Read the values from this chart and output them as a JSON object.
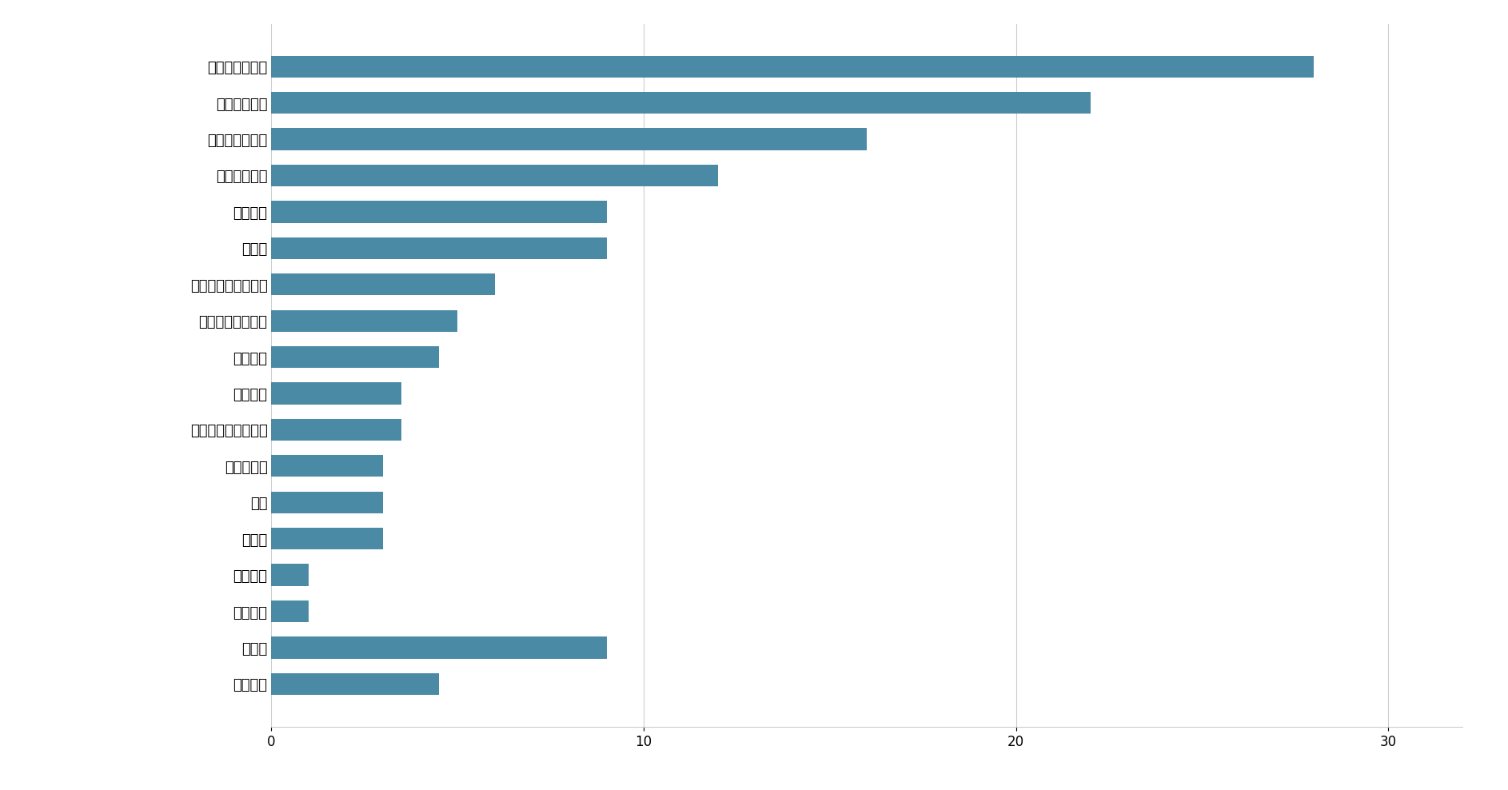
{
  "categories": [
    "作業手順の定着",
    "覚えられない",
    "作業・入力ミス",
    "処理スピード",
    "指示理解",
    "正確さ",
    "コミュニケーション",
    "感情コントロール",
    "体調管理",
    "優先順位",
    "集中力・疲れやすい",
    "ペース配分",
    "継続",
    "居眠り",
    "自信喪失",
    "思い込み",
    "その他",
    "記載なし"
  ],
  "values": [
    28,
    22,
    16,
    12,
    9,
    9,
    6,
    5,
    4.5,
    3.5,
    3.5,
    3,
    3,
    3,
    1,
    1,
    9,
    4.5
  ],
  "bar_color": "#4a8aa5",
  "background_color": "#ffffff",
  "xlim": [
    0,
    32
  ],
  "xticks": [
    0,
    10,
    20,
    30
  ],
  "grid_color": "#cccccc",
  "bar_height": 0.6,
  "label_fontsize": 13,
  "tick_fontsize": 12
}
